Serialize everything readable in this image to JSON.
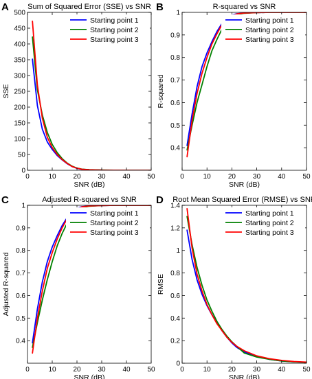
{
  "chart_data": [
    {
      "panel": "A",
      "type": "line",
      "title": "Sum of Squared Error (SSE) vs SNR",
      "xlabel": "SNR (dB)",
      "ylabel": "SSE",
      "xlim": [
        0,
        50
      ],
      "ylim": [
        0,
        500
      ],
      "xticks": [
        0,
        10,
        20,
        30,
        40,
        50
      ],
      "yticks": [
        0,
        50,
        100,
        150,
        200,
        250,
        300,
        350,
        400,
        450,
        500
      ],
      "grid": false,
      "legend_position": "top-right",
      "series": [
        {
          "name": "Starting point 1",
          "color": "#0000ff",
          "x": [
            2,
            4,
            6,
            8,
            10,
            12,
            14,
            16,
            18,
            20,
            22,
            25,
            30,
            35,
            40,
            45,
            50
          ],
          "y": [
            352,
            205,
            130,
            90,
            66,
            47,
            33,
            21,
            12,
            6,
            3,
            1.5,
            0.5,
            0.2,
            0.1,
            0.05,
            0.02
          ]
        },
        {
          "name": "Starting point 2",
          "color": "#008000",
          "x": [
            2,
            4,
            6,
            8,
            10,
            12,
            14,
            16,
            18,
            20,
            22,
            25,
            30,
            35,
            40,
            45,
            50
          ],
          "y": [
            422,
            255,
            175,
            120,
            82,
            56,
            37,
            23,
            13,
            7,
            3.5,
            1.8,
            0.6,
            0.25,
            0.1,
            0.05,
            0.02
          ]
        },
        {
          "name": "Starting point 3",
          "color": "#ff0000",
          "x": [
            2,
            4,
            6,
            8,
            10,
            12,
            14,
            16,
            18,
            20,
            22,
            25,
            30,
            35,
            40,
            45,
            50
          ],
          "y": [
            472,
            270,
            165,
            105,
            72,
            50,
            34,
            22,
            12,
            6.5,
            3.2,
            1.6,
            0.5,
            0.2,
            0.1,
            0.05,
            0.02
          ]
        }
      ]
    },
    {
      "panel": "B",
      "type": "line",
      "title": "R-squared vs SNR",
      "xlabel": "SNR (dB)",
      "ylabel": "R-squared",
      "xlim": [
        0,
        50
      ],
      "ylim": [
        0.3,
        1
      ],
      "xticks": [
        0,
        10,
        20,
        30,
        40,
        50
      ],
      "yticks": [
        0.4,
        0.5,
        0.6,
        0.7,
        0.8,
        0.9,
        1
      ],
      "grid": false,
      "legend_position": "top-right",
      "series": [
        {
          "name": "Starting point 1",
          "color": "#0000ff",
          "x": [
            2,
            4,
            6,
            8,
            10,
            12,
            14,
            16,
            18,
            20,
            22,
            25,
            30,
            35,
            40,
            45,
            50
          ],
          "y": [
            0.41,
            0.55,
            0.67,
            0.76,
            0.82,
            0.87,
            0.915,
            0.95,
            0.975,
            0.988,
            0.994,
            0.997,
            0.999,
            1,
            1,
            1,
            1
          ]
        },
        {
          "name": "Starting point 2",
          "color": "#008000",
          "x": [
            2,
            4,
            6,
            8,
            10,
            12,
            14,
            16,
            18,
            20,
            22,
            25,
            30,
            35,
            40,
            45,
            50
          ],
          "y": [
            0.39,
            0.5,
            0.6,
            0.68,
            0.76,
            0.83,
            0.88,
            0.925,
            0.96,
            0.98,
            0.99,
            0.996,
            0.999,
            1,
            1,
            1,
            1
          ]
        },
        {
          "name": "Starting point 3",
          "color": "#ff0000",
          "x": [
            2,
            4,
            6,
            8,
            10,
            12,
            14,
            16,
            18,
            20,
            22,
            25,
            30,
            35,
            40,
            45,
            50
          ],
          "y": [
            0.36,
            0.52,
            0.64,
            0.73,
            0.8,
            0.86,
            0.905,
            0.945,
            0.97,
            0.985,
            0.993,
            0.997,
            0.999,
            1,
            1,
            1,
            1
          ]
        }
      ]
    },
    {
      "panel": "C",
      "type": "line",
      "title": "Adjusted R-squared vs SNR",
      "xlabel": "SNR (dB)",
      "ylabel": "Adjusted R-squared",
      "xlim": [
        0,
        50
      ],
      "ylim": [
        0.3,
        1
      ],
      "xticks": [
        0,
        10,
        20,
        30,
        40,
        50
      ],
      "yticks": [
        0.4,
        0.5,
        0.6,
        0.7,
        0.8,
        0.9,
        1
      ],
      "grid": false,
      "legend_position": "top-right",
      "series": [
        {
          "name": "Starting point 1",
          "color": "#0000ff",
          "x": [
            2,
            4,
            6,
            8,
            10,
            12,
            14,
            16,
            18,
            20,
            22,
            25,
            30,
            35,
            40,
            45,
            50
          ],
          "y": [
            0.39,
            0.54,
            0.66,
            0.75,
            0.815,
            0.865,
            0.91,
            0.945,
            0.972,
            0.987,
            0.994,
            0.997,
            0.999,
            1,
            1,
            1,
            1
          ]
        },
        {
          "name": "Starting point 2",
          "color": "#008000",
          "x": [
            2,
            4,
            6,
            8,
            10,
            12,
            14,
            16,
            18,
            20,
            22,
            25,
            30,
            35,
            40,
            45,
            50
          ],
          "y": [
            0.37,
            0.48,
            0.58,
            0.67,
            0.75,
            0.82,
            0.875,
            0.92,
            0.957,
            0.978,
            0.99,
            0.996,
            0.999,
            1,
            1,
            1,
            1
          ]
        },
        {
          "name": "Starting point 3",
          "color": "#ff0000",
          "x": [
            2,
            4,
            6,
            8,
            10,
            12,
            14,
            16,
            18,
            20,
            22,
            25,
            30,
            35,
            40,
            45,
            50
          ],
          "y": [
            0.345,
            0.5,
            0.62,
            0.72,
            0.79,
            0.85,
            0.9,
            0.94,
            0.968,
            0.984,
            0.993,
            0.997,
            0.999,
            1,
            1,
            1,
            1
          ]
        }
      ]
    },
    {
      "panel": "D",
      "type": "line",
      "title": "Root Mean Squared Error (RMSE) vs SNR",
      "xlabel": "SNR (dB)",
      "ylabel": "RMSE",
      "xlim": [
        0,
        50
      ],
      "ylim": [
        0,
        1.4
      ],
      "xticks": [
        0,
        10,
        20,
        30,
        40,
        50
      ],
      "yticks": [
        0,
        0.2,
        0.4,
        0.6,
        0.8,
        1,
        1.2,
        1.4
      ],
      "grid": false,
      "legend_position": "top-right",
      "series": [
        {
          "name": "Starting point 1",
          "color": "#0000ff",
          "x": [
            2,
            4,
            6,
            8,
            10,
            12,
            14,
            16,
            18,
            20,
            22,
            25,
            30,
            35,
            40,
            45,
            50
          ],
          "y": [
            1.18,
            0.92,
            0.74,
            0.61,
            0.51,
            0.43,
            0.36,
            0.29,
            0.23,
            0.18,
            0.14,
            0.1,
            0.06,
            0.035,
            0.02,
            0.012,
            0.008
          ]
        },
        {
          "name": "Starting point 2",
          "color": "#008000",
          "x": [
            2,
            4,
            6,
            8,
            10,
            12,
            14,
            16,
            18,
            20,
            22,
            25,
            30,
            35,
            40,
            45,
            50
          ],
          "y": [
            1.3,
            1.05,
            0.85,
            0.69,
            0.56,
            0.46,
            0.37,
            0.3,
            0.24,
            0.19,
            0.15,
            0.09,
            0.055,
            0.035,
            0.02,
            0.012,
            0.008
          ]
        },
        {
          "name": "Starting point 3",
          "color": "#ff0000",
          "x": [
            2,
            4,
            6,
            8,
            10,
            12,
            14,
            16,
            18,
            20,
            22,
            25,
            30,
            35,
            40,
            45,
            50
          ],
          "y": [
            1.37,
            1.02,
            0.79,
            0.64,
            0.52,
            0.43,
            0.35,
            0.29,
            0.23,
            0.185,
            0.15,
            0.11,
            0.065,
            0.04,
            0.025,
            0.015,
            0.01
          ]
        }
      ]
    }
  ]
}
